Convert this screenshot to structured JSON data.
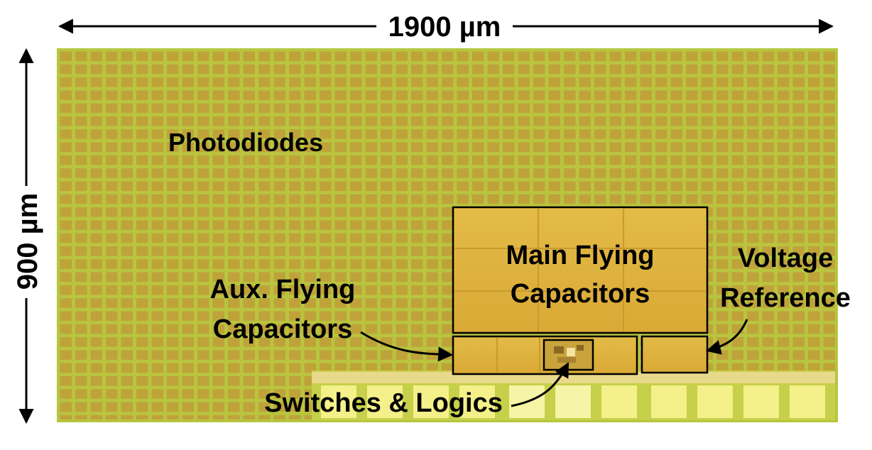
{
  "dimensions": {
    "width": "1900 µm",
    "height": "900 µm"
  },
  "labels": {
    "photodiodes": "Photodiodes",
    "main_caps": [
      "Main Flying",
      "Capacitors"
    ],
    "voltage_ref": [
      "Voltage",
      "Reference"
    ],
    "aux_caps": [
      "Aux. Flying",
      "Capacitors"
    ],
    "switches": "Switches & Logics"
  },
  "colors": {
    "die_green": "#b5c63e",
    "photodiode_cell": "#bfa33a",
    "capacitor_gold": "#e0b43c",
    "pad_yellow": "#f4f08a",
    "outline": "#000000"
  }
}
